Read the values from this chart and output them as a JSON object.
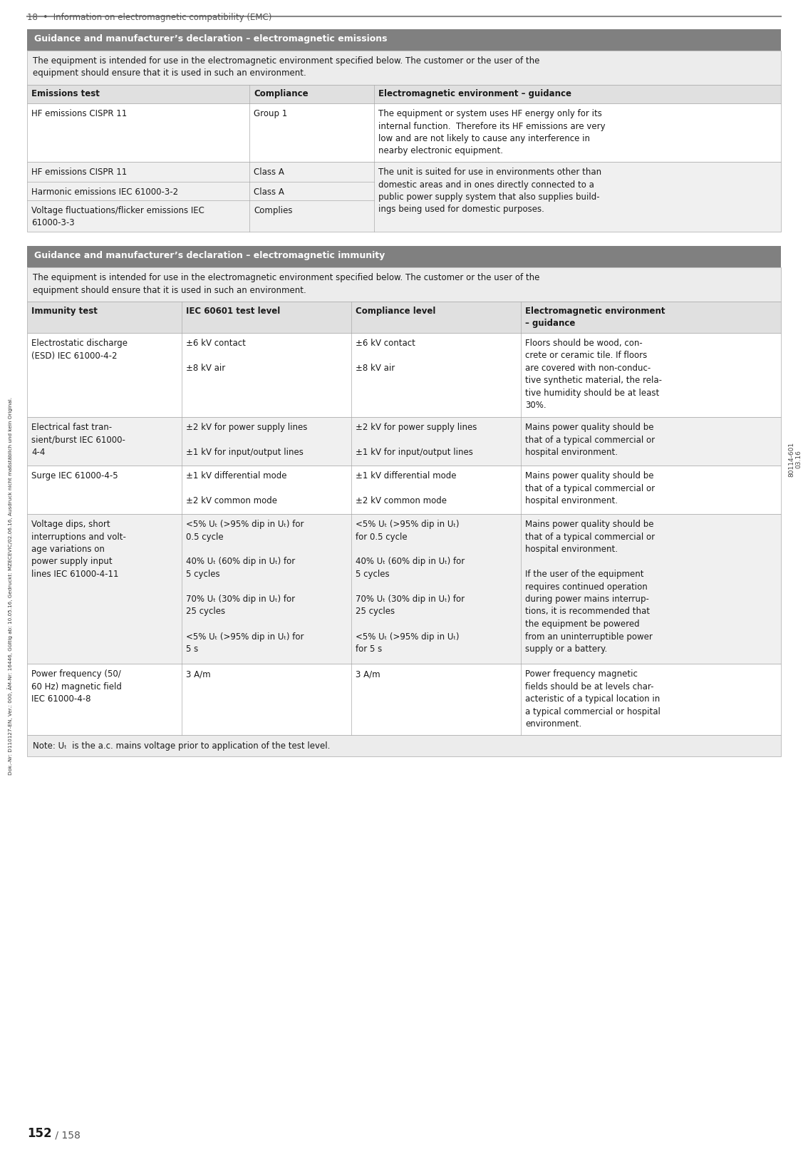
{
  "page_title": "18  •  Information on electromagnetic compatibility (EMC)",
  "page_number": "152",
  "page_number_suffix": " / 158",
  "doc_ref": "80114-601\n03.16",
  "watermark": "Dok.-Nr: D110127-EN, Ver.: 000, ÄM-Nr: 16446, Gültig ab: 10.05.16, Gedruckt: MZECEVIC/02.06.16, Ausdruck nicht maßstäblich und kein Original.",
  "bg_color": "#ffffff",
  "header_bg": "#808080",
  "header_text_color": "#ffffff",
  "col_header_bg": "#e0e0e0",
  "row_white_bg": "#ffffff",
  "row_alt_bg": "#f0f0f0",
  "intro_bg": "#ececec",
  "border_color": "#aaaaaa",
  "text_color": "#1a1a1a",
  "section1_title": "Guidance and manufacturer’s declaration – electromagnetic emissions",
  "section1_intro": "The equipment is intended for use in the electromagnetic environment specified below. The customer or the user of the\nequipment should ensure that it is used in such an environment.",
  "s1_col_headers": [
    "Emissions test",
    "Compliance",
    "Electromagnetic environment – guidance"
  ],
  "s1_rows": [
    {
      "col1": "HF emissions CISPR 11",
      "col2": "Group 1",
      "col3": "The equipment or system uses HF energy only for its\ninternal function.  Therefore its HF emissions are very\nlow and are not likely to cause any interference in\nnearby electronic equipment.",
      "bg": "#ffffff"
    },
    {
      "col1": "HF emissions CISPR 11",
      "col2": "Class A",
      "col3": "The unit is suited for use in environments other than\ndomestic areas and in ones directly connected to a\npublic power supply system that also supplies build-\nings being used for domestic purposes.",
      "bg": "#f0f0f0",
      "col3_rowspan": 3
    },
    {
      "col1": "Harmonic emissions IEC 61000-3-2",
      "col2": "Class A",
      "col3": null,
      "bg": "#f0f0f0"
    },
    {
      "col1": "Voltage fluctuations/flicker emissions IEC\n61000-3-3",
      "col2": "Complies",
      "col3": null,
      "bg": "#f0f0f0"
    }
  ],
  "section2_title": "Guidance and manufacturer’s declaration – electromagnetic immunity",
  "section2_intro": "The equipment is intended for use in the electromagnetic environment specified below. The customer or the user of the\nequipment should ensure that it is used in such an environment.",
  "s2_col_headers": [
    "Immunity test",
    "IEC 60601 test level",
    "Compliance level",
    "Electromagnetic environment\n– guidance"
  ],
  "s2_rows": [
    {
      "col1": "Electrostatic discharge\n(ESD) IEC 61000-4-2",
      "col2": "±6 kV contact\n\n±8 kV air",
      "col3": "±6 kV contact\n\n±8 kV air",
      "col4": "Floors should be wood, con-\ncrete or ceramic tile. If floors\nare covered with non-conduc-\ntive synthetic material, the rela-\ntive humidity should be at least\n30%.",
      "bg": "#ffffff"
    },
    {
      "col1": "Electrical fast tran-\nsient/burst IEC 61000-\n4-4",
      "col2": "±2 kV for power supply lines\n\n±1 kV for input/output lines",
      "col3": "±2 kV for power supply lines\n\n±1 kV for input/output lines",
      "col4": "Mains power quality should be\nthat of a typical commercial or\nhospital environment.",
      "bg": "#f0f0f0"
    },
    {
      "col1": "Surge IEC 61000-4-5",
      "col2": "±1 kV differential mode\n\n±2 kV common mode",
      "col3": "±1 kV differential mode\n\n±2 kV common mode",
      "col4": "Mains power quality should be\nthat of a typical commercial or\nhospital environment.",
      "bg": "#ffffff"
    },
    {
      "col1": "Voltage dips, short\ninterruptions and volt-\nage variations on\npower supply input\nlines IEC 61000-4-11",
      "col2": "<5% Uₜ (>95% dip in Uₜ) for\n0.5 cycle\n\n40% Uₜ (60% dip in Uₜ) for\n5 cycles\n\n70% Uₜ (30% dip in Uₜ) for\n25 cycles\n\n<5% Uₜ (>95% dip in Uₜ) for\n5 s",
      "col3": "<5% Uₜ (>95% dip in Uₜ)\nfor 0.5 cycle\n\n40% Uₜ (60% dip in Uₜ) for\n5 cycles\n\n70% Uₜ (30% dip in Uₜ) for\n25 cycles\n\n<5% Uₜ (>95% dip in Uₜ)\nfor 5 s",
      "col4": "Mains power quality should be\nthat of a typical commercial or\nhospital environment.\n\nIf the user of the equipment\nrequires continued operation\nduring power mains interrup-\ntions, it is recommended that\nthe equipment be powered\nfrom an uninterruptible power\nsupply or a battery.",
      "bg": "#f0f0f0"
    },
    {
      "col1": "Power frequency (50/\n60 Hz) magnetic field\nIEC 61000-4-8",
      "col2": "3 A/m",
      "col3": "3 A/m",
      "col4": "Power frequency magnetic\nfields should be at levels char-\nacteristic of a typical location in\na typical commercial or hospital\nenvironment.",
      "bg": "#ffffff"
    }
  ],
  "note": "Note: Uₜ  is the a.c. mains voltage prior to application of the test level."
}
